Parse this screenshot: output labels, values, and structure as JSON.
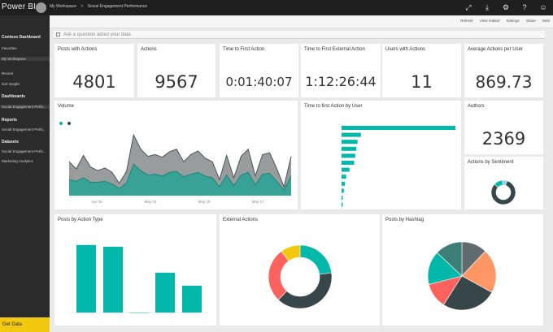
{
  "topbar": {
    "brand": "Power BI",
    "breadcrumbs": [
      "My Workspace",
      ">",
      "Social Engagement Performance"
    ]
  },
  "sidebar": {
    "items": [
      {
        "label": "Contoso Dashboard"
      },
      {
        "label": "Favorites"
      },
      {
        "label": "My Workspace"
      },
      {
        "label": "Recent"
      },
      {
        "label": "Get Insight"
      },
      {
        "label": "Dashboards"
      },
      {
        "label": "Social Engagement Perfo..."
      },
      {
        "label": "Reports"
      },
      {
        "label": "Social Engagement Perfo..."
      },
      {
        "label": "Datasets"
      },
      {
        "label": "Social Engagement Perfo..."
      },
      {
        "label": "Marketing Analytics"
      }
    ],
    "get_data": "Get Data"
  },
  "subbar": {
    "actions": [
      "Refresh",
      "View related",
      "Settings",
      "Share",
      "Web"
    ]
  },
  "qna": {
    "placeholder": "Ask a question about your data"
  },
  "kpis": [
    {
      "title": "Posts with Actions",
      "value": "4801"
    },
    {
      "title": "Actions",
      "value": "9567"
    },
    {
      "title": "Time to First Action",
      "value": "0:01:40:07"
    },
    {
      "title": "Time to First External Action",
      "value": "1:12:26:44"
    },
    {
      "title": "Users with Actions",
      "value": "11"
    },
    {
      "title": "Average Actions per User",
      "value": "869.73"
    }
  ],
  "authors": {
    "title": "Authors",
    "value": "2369"
  },
  "volume": {
    "title": "Volume",
    "chart_data": {
      "type": "area",
      "series": [
        {
          "values": [
            38,
            30,
            45,
            32,
            28,
            31,
            26,
            14,
            27,
            68,
            52,
            44,
            46,
            43,
            49,
            52,
            38,
            46,
            50,
            42,
            38,
            18,
            45,
            20,
            44,
            52,
            22,
            46,
            48,
            30,
            10,
            44
          ]
        },
        {
          "values": [
            18,
            16,
            20,
            15,
            15,
            16,
            13,
            8,
            14,
            35,
            28,
            23,
            24,
            22,
            26,
            27,
            21,
            24,
            26,
            22,
            20,
            10,
            23,
            11,
            23,
            26,
            12,
            24,
            25,
            16,
            6,
            22
          ]
        }
      ],
      "xticks": [
        "Apr 26",
        "May 03",
        "May 10",
        "May 17"
      ]
    }
  },
  "ttfa": {
    "title": "Time to first Action by User",
    "chart_data": {
      "type": "bar",
      "values": [
        100,
        17,
        14,
        13,
        12,
        11,
        7,
        4,
        3,
        2,
        1,
        1
      ]
    }
  },
  "sentiment": {
    "title": "Actions by Sentiment",
    "chart_data": {
      "type": "pie",
      "values": [
        82,
        12,
        6
      ]
    }
  },
  "action_type": {
    "title": "Posts by Action Type",
    "chart_data": {
      "type": "bar",
      "values": [
        78,
        76,
        0,
        46,
        31
      ],
      "ylim": [
        0,
        90
      ]
    }
  },
  "external": {
    "title": "External Actions",
    "chart_data": {
      "type": "pie",
      "values": [
        23,
        39,
        28,
        10
      ]
    }
  },
  "hashtag": {
    "title": "Posts by Hashtag",
    "chart_data": {
      "type": "pie",
      "values": [
        12,
        21,
        26,
        12,
        16,
        13
      ]
    }
  },
  "colors": {
    "teal": "#01b8aa",
    "dark": "#374649",
    "red": "#fd625e",
    "yellow": "#f2c80f",
    "gray": "#5f6b6d",
    "orange": "#fe9666"
  }
}
